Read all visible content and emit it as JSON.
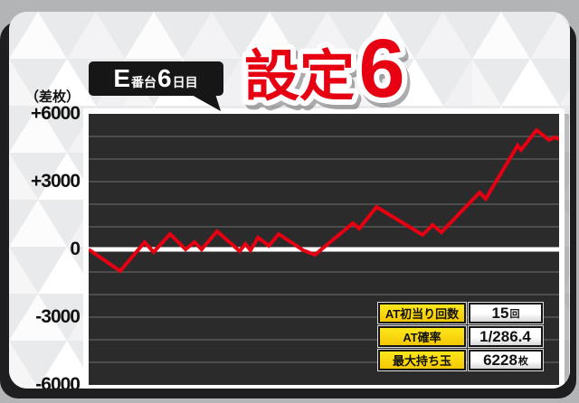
{
  "header": {
    "machine_bubble": {
      "big1": "E",
      "small1": "番台",
      "big2": "6",
      "small2": "日目"
    },
    "title": {
      "main": "設定",
      "number": "6"
    }
  },
  "chart": {
    "unit_label": "（差枚）",
    "y_ticks": [
      {
        "label": "+6000",
        "value": 6000
      },
      {
        "label": "+3000",
        "value": 3000
      },
      {
        "label": "0",
        "value": 0
      },
      {
        "label": "-3000",
        "value": -3000
      },
      {
        "label": "-6000",
        "value": -6000
      }
    ]
  },
  "chart_data": {
    "type": "line",
    "title": "設定6 E番台6日目 差枚推移",
    "ylabel": "（差枚）",
    "ylim": [
      -6000,
      6000
    ],
    "y_tick_step": 3000,
    "y_gridline_step": 1000,
    "zero_line": true,
    "x_axis_labels": "none",
    "points_format": "[x_percent_of_width, sa-mai value]",
    "line_color": "#e60012",
    "series": [
      {
        "name": "差枚",
        "points": [
          [
            0,
            0
          ],
          [
            6.7,
            -960
          ],
          [
            11.9,
            320
          ],
          [
            13.8,
            -120
          ],
          [
            17.3,
            680
          ],
          [
            20.6,
            0
          ],
          [
            22.5,
            320
          ],
          [
            24,
            0
          ],
          [
            27.3,
            800
          ],
          [
            32.1,
            -80
          ],
          [
            33.3,
            240
          ],
          [
            34.4,
            -40
          ],
          [
            36,
            520
          ],
          [
            38.3,
            160
          ],
          [
            40.4,
            680
          ],
          [
            45.6,
            -40
          ],
          [
            48.1,
            -240
          ],
          [
            56.2,
            1160
          ],
          [
            57.5,
            920
          ],
          [
            61.2,
            1880
          ],
          [
            71,
            640
          ],
          [
            73.1,
            1080
          ],
          [
            75,
            760
          ],
          [
            83.1,
            2520
          ],
          [
            84.4,
            2240
          ],
          [
            91.2,
            4600
          ],
          [
            91.9,
            4400
          ],
          [
            95.2,
            5280
          ],
          [
            97.9,
            4840
          ],
          [
            99,
            4960
          ],
          [
            100,
            4880
          ]
        ]
      }
    ]
  },
  "stats_table": {
    "rows": [
      {
        "label": "AT初当り回数",
        "value": "15",
        "unit": "回"
      },
      {
        "label": "AT確率",
        "value": "1/286.4",
        "unit": ""
      },
      {
        "label": "最大持ち玉",
        "value": "6228",
        "unit": "枚"
      }
    ]
  },
  "colors": {
    "accent_red": "#e60012",
    "table_yellow": "#ffd800",
    "chart_bg": "#2b2b2b",
    "page_gray": "#b2b4b6",
    "card_shadow": "#1e1e20",
    "bubble_black": "#161616"
  }
}
